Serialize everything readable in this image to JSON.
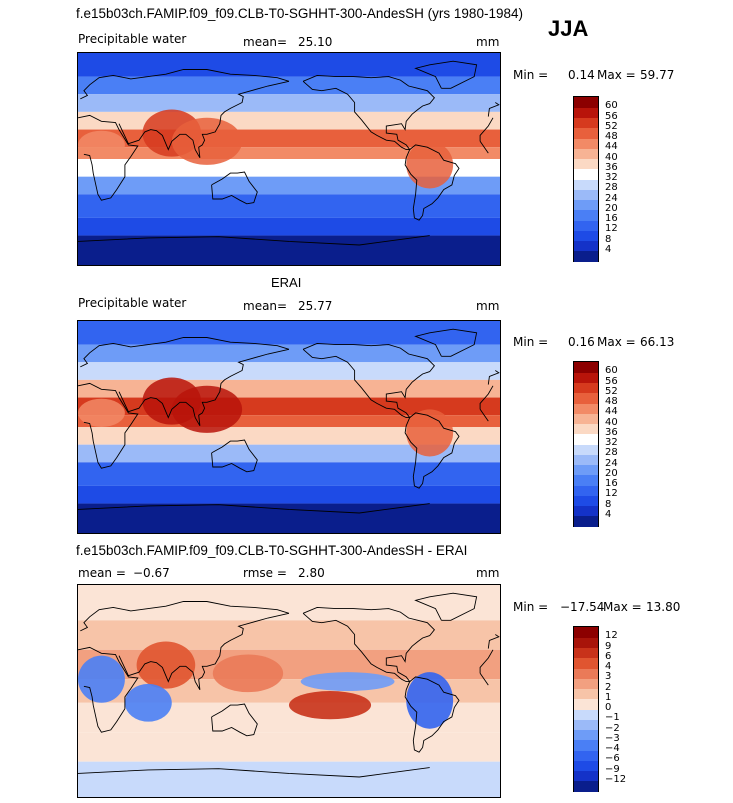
{
  "main_title": "f.e15b03ch.FAMIP.f09_f09.CLB-T0-SGHHT-300-AndesSH (yrs 1980-1984)",
  "season": "JJA",
  "panels": [
    {
      "id": "model",
      "heading": "",
      "variable": "Precipitable water",
      "stat1_label": "mean=",
      "stat1_value": "25.10",
      "stat2_label": "",
      "stat2_value": "",
      "units": "mm",
      "min_label": "Min =",
      "min_value": "0.14",
      "max_label": "Max =",
      "max_value": "59.77"
    },
    {
      "id": "obs",
      "heading": "ERAI",
      "variable": "Precipitable water",
      "stat1_label": "mean=",
      "stat1_value": "25.77",
      "stat2_label": "",
      "stat2_value": "",
      "units": "mm",
      "min_label": "Min =",
      "min_value": "0.16",
      "max_label": "Max =",
      "max_value": "66.13"
    },
    {
      "id": "diff",
      "heading": "f.e15b03ch.FAMIP.f09_f09.CLB-T0-SGHHT-300-AndesSH - ERAI",
      "variable": "",
      "stat1_label": "mean =",
      "stat1_value": "−0.67",
      "stat2_label": "rmse =",
      "stat2_value": "2.80",
      "units": "mm",
      "min_label": "Min =",
      "min_value": "−17.54",
      "max_label": "Max =",
      "max_value": "13.80"
    }
  ],
  "chart_data": [
    {
      "type": "heatmap",
      "panel": "model",
      "colorbar_levels": [
        "4",
        "8",
        "12",
        "16",
        "20",
        "24",
        "28",
        "32",
        "36",
        "40",
        "44",
        "48",
        "52",
        "56",
        "60"
      ],
      "colors": [
        "#0a1e8c",
        "#1432c8",
        "#1e4be6",
        "#3264f0",
        "#4a7ff5",
        "#6e9cf7",
        "#9bbaf8",
        "#c8dafb",
        "#ffffff",
        "#fbd9c4",
        "#f7b394",
        "#f28a66",
        "#e8603c",
        "#d63a1e",
        "#b8140a",
        "#8c0000"
      ],
      "xlim": [
        0,
        360
      ],
      "ylim": [
        -90,
        90
      ],
      "summary": {
        "mean": 25.1,
        "min": 0.14,
        "max": 59.77
      }
    },
    {
      "type": "heatmap",
      "panel": "obs",
      "colorbar_levels": [
        "4",
        "8",
        "12",
        "16",
        "20",
        "24",
        "28",
        "32",
        "36",
        "40",
        "44",
        "48",
        "52",
        "56",
        "60"
      ],
      "colors": [
        "#0a1e8c",
        "#1432c8",
        "#1e4be6",
        "#3264f0",
        "#4a7ff5",
        "#6e9cf7",
        "#9bbaf8",
        "#c8dafb",
        "#ffffff",
        "#fbd9c4",
        "#f7b394",
        "#f28a66",
        "#e8603c",
        "#d63a1e",
        "#b8140a",
        "#8c0000"
      ],
      "xlim": [
        0,
        360
      ],
      "ylim": [
        -90,
        90
      ],
      "summary": {
        "mean": 25.77,
        "min": 0.16,
        "max": 66.13
      }
    },
    {
      "type": "heatmap",
      "panel": "diff",
      "colorbar_levels": [
        "−12",
        "−9",
        "−6",
        "−4",
        "−3",
        "−2",
        "−1",
        "0",
        "1",
        "2",
        "3",
        "4",
        "6",
        "9",
        "12"
      ],
      "colors": [
        "#0a1e8c",
        "#1432c8",
        "#1e4be6",
        "#3264f0",
        "#4a7ff5",
        "#6e9cf7",
        "#9bbaf8",
        "#c8dafb",
        "#fbe4d6",
        "#f7c4a8",
        "#f2a080",
        "#ea7a58",
        "#e05530",
        "#c8321a",
        "#a8140a",
        "#8c0000"
      ],
      "xlim": [
        0,
        360
      ],
      "ylim": [
        -90,
        90
      ],
      "summary": {
        "mean": -0.67,
        "rmse": 2.8,
        "min": -17.54,
        "max": 13.8
      }
    }
  ]
}
